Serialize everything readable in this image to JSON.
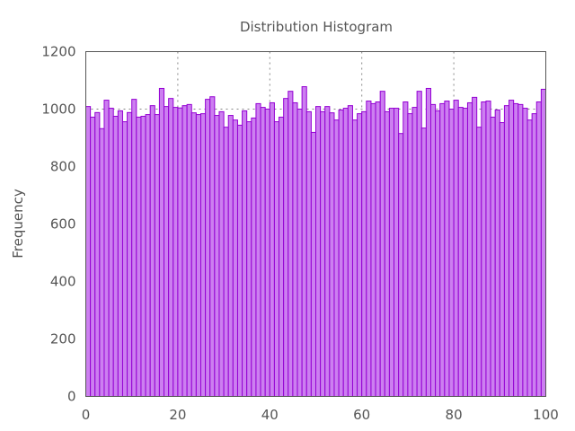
{
  "chart_data": {
    "type": "bar",
    "title": "Distribution Histogram",
    "xlabel": "",
    "ylabel": "Frequency",
    "xlim": [
      0,
      100
    ],
    "ylim": [
      0,
      1200
    ],
    "xticks": [
      0,
      20,
      40,
      60,
      80,
      100
    ],
    "yticks": [
      0,
      200,
      400,
      600,
      800,
      1000,
      1200
    ],
    "grid": {
      "x_at": [
        20,
        40,
        60,
        80
      ],
      "y_at": [
        1000
      ],
      "style": "dotted"
    },
    "bin_width": 1,
    "bar_fill": "#cc7ff0",
    "bar_stroke": "#9400d3",
    "values": [
      1009,
      972,
      988,
      932,
      1031,
      1003,
      975,
      994,
      956,
      988,
      1034,
      972,
      975,
      981,
      1012,
      981,
      1072,
      1009,
      1037,
      1006,
      1004,
      1012,
      1016,
      987,
      981,
      984,
      1034,
      1043,
      978,
      991,
      937,
      978,
      962,
      944,
      994,
      956,
      969,
      1019,
      1006,
      1000,
      1022,
      956,
      972,
      1037,
      1062,
      1022,
      1000,
      1078,
      991,
      919,
      1009,
      991,
      1009,
      987,
      962,
      997,
      1003,
      1012,
      962,
      984,
      991,
      1028,
      1019,
      1025,
      1062,
      991,
      1003,
      1003,
      915,
      1025,
      984,
      1006,
      1062,
      934,
      1072,
      1016,
      994,
      1019,
      1028,
      1000,
      1031,
      1006,
      1003,
      1022,
      1041,
      937,
      1025,
      1028,
      972,
      997,
      953,
      1012,
      1031,
      1019,
      1016,
      1003,
      962,
      984,
      1025,
      1069
    ]
  }
}
